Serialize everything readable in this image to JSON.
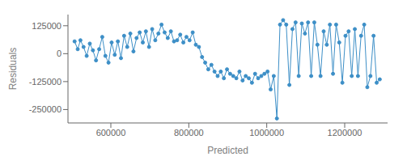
{
  "chart_data": {
    "type": "line",
    "xlabel": "Predicted",
    "ylabel": "Residuals",
    "color": "#3d8fc7",
    "marker": "circle",
    "xlim": [
      490000,
      1310000
    ],
    "ylim": [
      -310000,
      175000
    ],
    "xticks": [
      600000,
      800000,
      1000000,
      1200000
    ],
    "yticks": [
      -250000,
      -125000,
      0,
      125000
    ],
    "x": [
      507000,
      515000,
      522000,
      530000,
      538000,
      546000,
      554000,
      562000,
      570000,
      578000,
      586000,
      594000,
      602000,
      610000,
      618000,
      626000,
      634000,
      642000,
      650000,
      658000,
      666000,
      674000,
      682000,
      690000,
      698000,
      706000,
      714000,
      722000,
      730000,
      738000,
      746000,
      754000,
      762000,
      770000,
      778000,
      786000,
      794000,
      802000,
      810000,
      818000,
      826000,
      834000,
      842000,
      850000,
      858000,
      866000,
      874000,
      882000,
      890000,
      898000,
      906000,
      914000,
      922000,
      930000,
      938000,
      946000,
      954000,
      962000,
      970000,
      978000,
      986000,
      994000,
      1002000,
      1010000,
      1018000,
      1026000,
      1034000,
      1042000,
      1050000,
      1058000,
      1066000,
      1074000,
      1082000,
      1090000,
      1098000,
      1106000,
      1114000,
      1122000,
      1130000,
      1138000,
      1146000,
      1154000,
      1162000,
      1170000,
      1178000,
      1186000,
      1194000,
      1202000,
      1210000,
      1218000,
      1226000,
      1234000,
      1242000,
      1250000,
      1258000,
      1266000,
      1274000,
      1282000,
      1290000
    ],
    "values": [
      55000,
      20000,
      60000,
      30000,
      -10000,
      45000,
      15000,
      -30000,
      20000,
      75000,
      -10000,
      -40000,
      50000,
      -5000,
      55000,
      -20000,
      80000,
      30000,
      90000,
      10000,
      70000,
      95000,
      50000,
      100000,
      30000,
      110000,
      60000,
      90000,
      130000,
      95000,
      70000,
      100000,
      55000,
      60000,
      85000,
      50000,
      75000,
      60000,
      95000,
      40000,
      30000,
      -15000,
      -40000,
      -70000,
      -50000,
      -80000,
      -100000,
      -80000,
      -110000,
      -70000,
      -90000,
      -100000,
      -110000,
      -80000,
      -120000,
      -100000,
      -110000,
      -130000,
      -90000,
      -110000,
      -100000,
      -90000,
      -80000,
      -160000,
      -100000,
      -290000,
      130000,
      150000,
      130000,
      -140000,
      110000,
      140000,
      -100000,
      135000,
      90000,
      140000,
      -100000,
      140000,
      40000,
      -100000,
      100000,
      40000,
      130000,
      -90000,
      130000,
      50000,
      -130000,
      80000,
      100000,
      -100000,
      110000,
      -100000,
      80000,
      130000,
      -150000,
      -100000,
      80000,
      -130000,
      -115000
    ]
  }
}
